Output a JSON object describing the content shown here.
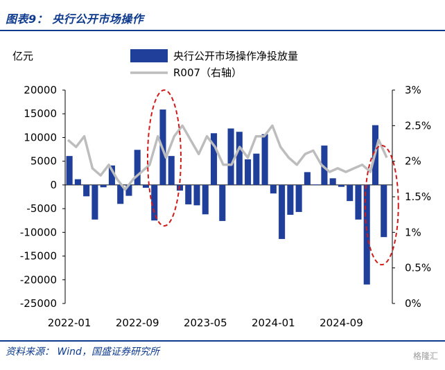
{
  "header": {
    "title": "图表9：  央行公开市场操作"
  },
  "footer": {
    "source": "资料来源： Wind，国盛证券研究所",
    "watermark": "格隆汇"
  },
  "chart_data": {
    "type": "bar+line",
    "left_axis_unit": "亿元",
    "left_ticks": [
      "20000",
      "15000",
      "10000",
      "5000",
      "0",
      "-5000",
      "-10000",
      "-15000",
      "-20000",
      "-25000"
    ],
    "right_ticks": [
      "3%",
      "2.5%",
      "2%",
      "1.5%",
      "1%",
      "0.5%",
      "0%"
    ],
    "x_ticks": [
      "2022-01",
      "2022-09",
      "2023-05",
      "2024-01",
      "2024-09"
    ],
    "ylim_left": [
      -25000,
      20000
    ],
    "ylim_right": [
      0,
      3
    ],
    "series": [
      {
        "name": "央行公开市场操作净投放量",
        "type": "bar",
        "color": "#1f3f9a",
        "values": [
          6100,
          1200,
          -2400,
          -7300,
          -500,
          4100,
          -4000,
          -2300,
          7400,
          -600,
          -7500,
          15900,
          6100,
          -1200,
          -4100,
          -4300,
          -6200,
          10900,
          -7600,
          11900,
          11200,
          5400,
          6600,
          10700,
          -1800,
          -11400,
          -6300,
          -5700,
          2700,
          100,
          8300,
          1400,
          -400,
          -3400,
          -7300,
          -21000,
          12600,
          -11000
        ]
      },
      {
        "name": "R007（右轴）",
        "type": "line",
        "color": "#bdbdbd",
        "values": [
          2.3,
          2.2,
          2.35,
          1.9,
          1.8,
          1.95,
          1.75,
          1.6,
          1.75,
          1.85,
          1.95,
          2.35,
          2.05,
          2.35,
          2.5,
          2.3,
          2.1,
          2.35,
          2.2,
          1.95,
          1.95,
          2.2,
          2.05,
          2.35,
          2.35,
          2.5,
          2.2,
          2.05,
          1.95,
          2.1,
          2.15,
          1.95,
          1.85,
          1.9,
          1.85,
          1.9,
          1.95,
          1.85,
          2.3,
          2.05
        ]
      }
    ],
    "x_index_of_ticks": [
      0,
      8,
      16,
      24,
      32
    ],
    "annotations": "two dashed red ellipses highlighting late 2022 peak and latest months"
  }
}
